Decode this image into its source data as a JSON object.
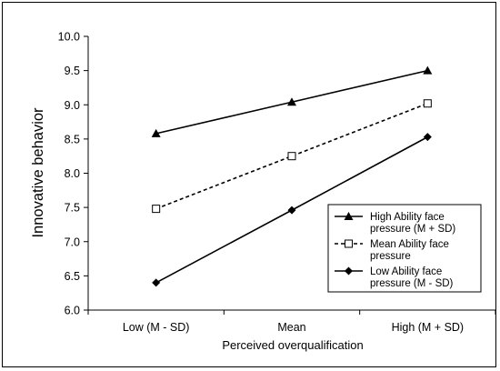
{
  "chart_data": {
    "type": "line",
    "title": "",
    "xlabel": "Perceived overqualification",
    "ylabel": "Innovative behavior",
    "categories": [
      "Low (M - SD)",
      "Mean",
      "High (M + SD)"
    ],
    "ylim": [
      6.0,
      10.0
    ],
    "yticks": [
      "6.0",
      "6.5",
      "7.0",
      "7.5",
      "8.0",
      "8.5",
      "9.0",
      "9.5",
      "10.0"
    ],
    "grid": false,
    "legend_position": "right",
    "series": [
      {
        "name": [
          "High Ability face",
          "pressure (M + SD)"
        ],
        "values": [
          8.58,
          9.04,
          9.5
        ],
        "marker": "triangle-filled",
        "line_style": "solid",
        "color": "#000000"
      },
      {
        "name": [
          "Mean Ability face",
          "pressure"
        ],
        "values": [
          7.48,
          8.25,
          9.02
        ],
        "marker": "square-open",
        "line_style": "dashed",
        "color": "#000000"
      },
      {
        "name": [
          "Low Ability face",
          "pressure (M - SD)"
        ],
        "values": [
          6.4,
          7.46,
          8.53
        ],
        "marker": "diamond-filled",
        "line_style": "solid",
        "color": "#000000"
      }
    ]
  }
}
